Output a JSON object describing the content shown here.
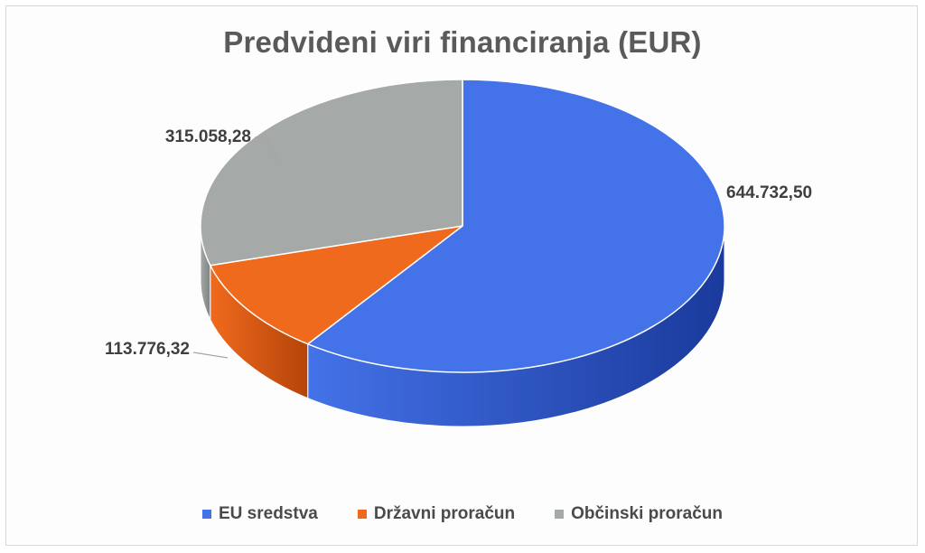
{
  "chart_data": {
    "type": "pie",
    "title": "Predvideni viri financiranja (EUR)",
    "categories": [
      "EU sredstva",
      "Državni proračun",
      "Občinski proračun"
    ],
    "values": [
      644732.5,
      113776.32,
      315058.28
    ],
    "value_labels": [
      "644.732,50",
      "113.776,32",
      "315.058,28"
    ],
    "colors": [
      "#4472e8",
      "#f06a1d",
      "#a5a9a8"
    ],
    "side_colors": [
      "#1a3a9c",
      "#b5440a",
      "#7d8180"
    ],
    "legend_position": "bottom",
    "style": "3d"
  }
}
